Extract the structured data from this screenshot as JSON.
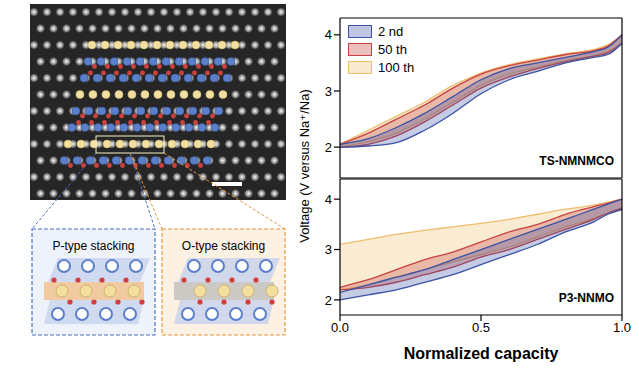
{
  "image_panel": {
    "labels": [
      "P-type stacking",
      "O-type stacking"
    ]
  },
  "chart_data": [
    {
      "type": "area",
      "annotations": [
        "TS-NMNMCO"
      ],
      "ylabel": "Voltage (V versus Na⁺/Na)",
      "x": [
        0,
        0.1,
        0.2,
        0.3,
        0.4,
        0.5,
        0.6,
        0.7,
        0.8,
        0.9,
        0.95,
        1
      ],
      "xlim": [
        0,
        1
      ],
      "xticks": [
        {
          "value": 0,
          "label": "0.0"
        },
        {
          "value": 0.5,
          "label": "0.5"
        },
        {
          "value": 1,
          "label": "1.0"
        }
      ],
      "ylim": [
        1.45,
        4.3
      ],
      "yticks": [
        2,
        3,
        4
      ],
      "tick_labels": "y",
      "legend": "upper left",
      "series": [
        {
          "name": "2 nd",
          "color": "#3b53a4",
          "charge": [
            2.05,
            2.15,
            2.35,
            2.6,
            2.9,
            3.2,
            3.4,
            3.5,
            3.6,
            3.7,
            3.78,
            4.0
          ],
          "discharge": [
            2.0,
            2.02,
            2.08,
            2.3,
            2.6,
            2.95,
            3.2,
            3.35,
            3.5,
            3.6,
            3.65,
            3.85
          ]
        },
        {
          "name": "50 th",
          "color": "#c8413f",
          "charge": [
            2.05,
            2.25,
            2.5,
            2.75,
            3.05,
            3.3,
            3.45,
            3.55,
            3.65,
            3.72,
            3.8,
            4.0
          ],
          "discharge": [
            2.0,
            2.05,
            2.2,
            2.45,
            2.75,
            3.05,
            3.25,
            3.4,
            3.52,
            3.62,
            3.68,
            3.85
          ]
        },
        {
          "name": "100 th",
          "color": "#eebd6e",
          "charge": [
            2.05,
            2.3,
            2.55,
            2.8,
            3.1,
            3.32,
            3.47,
            3.57,
            3.66,
            3.74,
            3.82,
            4.0
          ],
          "discharge": [
            2.0,
            2.1,
            2.25,
            2.5,
            2.8,
            3.1,
            3.3,
            3.42,
            3.54,
            3.63,
            3.7,
            3.85
          ]
        }
      ]
    },
    {
      "type": "area",
      "annotations": [
        "P3-NNMO"
      ],
      "xlabel": "Normalized capacity",
      "x": [
        0,
        0.1,
        0.2,
        0.3,
        0.4,
        0.5,
        0.6,
        0.7,
        0.8,
        0.9,
        0.95,
        1
      ],
      "xlim": [
        0,
        1
      ],
      "xticks": [
        {
          "value": 0,
          "label": "0.0"
        },
        {
          "value": 0.5,
          "label": "0.5"
        },
        {
          "value": 1,
          "label": "1.0"
        }
      ],
      "ylim": [
        1.7,
        4.4
      ],
      "yticks": [
        2,
        3,
        4
      ],
      "series": [
        {
          "name": "2 nd",
          "color": "#3b53a4",
          "charge": [
            2.15,
            2.3,
            2.45,
            2.6,
            2.8,
            3.0,
            3.2,
            3.4,
            3.6,
            3.8,
            3.9,
            4.0
          ],
          "discharge": [
            2.0,
            2.1,
            2.2,
            2.35,
            2.5,
            2.7,
            2.9,
            3.1,
            3.35,
            3.55,
            3.7,
            3.8
          ]
        },
        {
          "name": "50 th",
          "color": "#c8413f",
          "charge": [
            2.25,
            2.4,
            2.6,
            2.8,
            2.95,
            3.15,
            3.35,
            3.5,
            3.7,
            3.85,
            3.92,
            4.0
          ],
          "discharge": [
            2.2,
            2.25,
            2.35,
            2.5,
            2.65,
            2.85,
            3.0,
            3.2,
            3.4,
            3.6,
            3.72,
            3.82
          ]
        },
        {
          "name": "100 th",
          "color": "#eebd6e",
          "charge": [
            3.1,
            3.2,
            3.3,
            3.38,
            3.45,
            3.52,
            3.6,
            3.7,
            3.8,
            3.88,
            3.94,
            4.0
          ],
          "discharge": [
            2.2,
            2.3,
            2.45,
            2.6,
            2.75,
            2.9,
            3.05,
            3.25,
            3.45,
            3.62,
            3.72,
            3.78
          ]
        }
      ]
    }
  ]
}
